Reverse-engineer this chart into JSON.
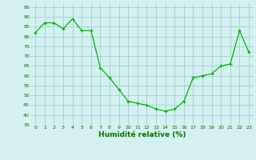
{
  "x_data": [
    0,
    1,
    2,
    3,
    4,
    5,
    6,
    7,
    8,
    9,
    10,
    11,
    12,
    13,
    14,
    15,
    16,
    17,
    18,
    19,
    20,
    21,
    22,
    23
  ],
  "y_data": [
    82,
    87,
    87,
    84,
    89,
    83,
    83,
    64,
    59,
    53,
    47,
    46,
    45,
    43,
    42,
    43,
    47,
    59,
    60,
    61,
    65,
    66,
    83,
    72
  ],
  "ylim": [
    35,
    97
  ],
  "yticks": [
    35,
    40,
    45,
    50,
    55,
    60,
    65,
    70,
    75,
    80,
    85,
    90,
    95
  ],
  "xlabel": "Humidité relative (%)",
  "line_color": "#00bb00",
  "marker_color": "#00bb00",
  "bg_color": "#d4f0f0",
  "grid_color": "#99cccc",
  "tick_color": "#007700",
  "label_color": "#007700"
}
